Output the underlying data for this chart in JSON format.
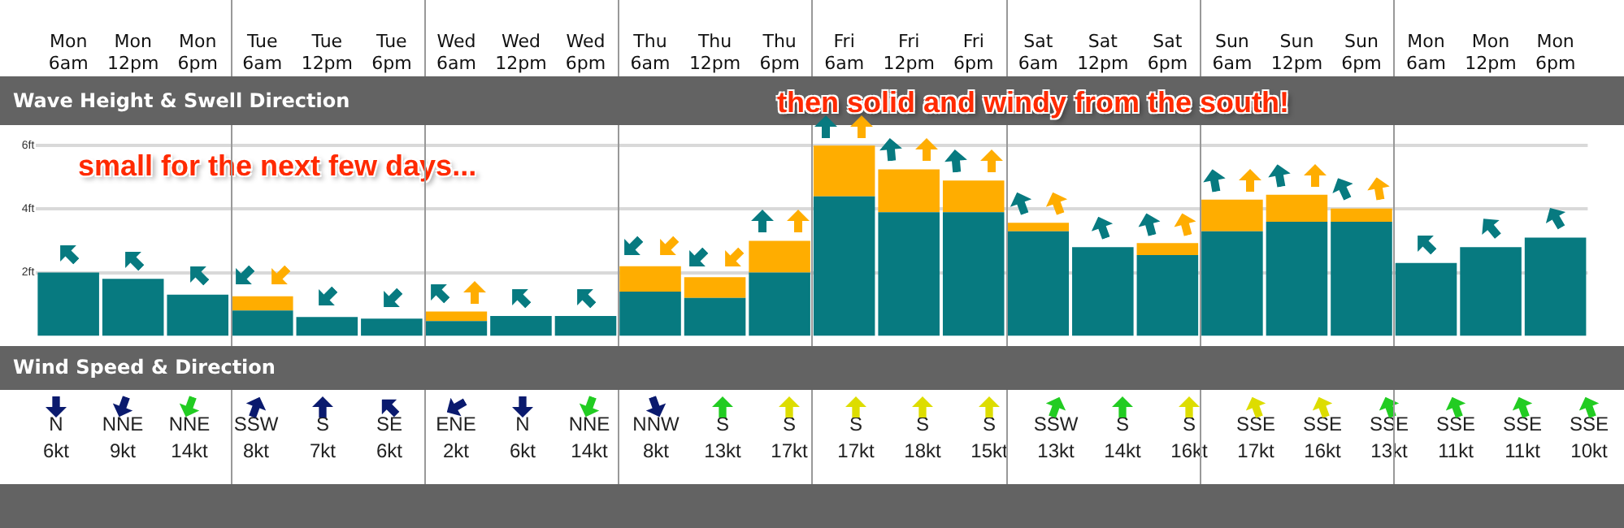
{
  "chart_data": [
    {
      "type": "bar",
      "title": "Wave Height & Swell Direction",
      "stacked": true,
      "grid": "y",
      "categories": [
        "Mon 6am",
        "Mon 12pm",
        "Mon 6pm",
        "Tue 6am",
        "Tue 12pm",
        "Tue 6pm",
        "Wed 6am",
        "Wed 12pm",
        "Wed 6pm",
        "Thu 6am",
        "Thu 12pm",
        "Thu 6pm",
        "Fri 6am",
        "Fri 12pm",
        "Fri 6pm",
        "Sat 6am",
        "Sat 12pm",
        "Sat 6pm",
        "Sun 6am",
        "Sun 12pm",
        "Sun 6pm",
        "Mon 6am",
        "Mon 12pm",
        "Mon 6pm"
      ],
      "series": [
        {
          "color": "#077a80",
          "values": [
            2.0,
            1.8,
            1.3,
            0.8,
            0.6,
            0.55,
            0.47,
            0.63,
            0.63,
            1.4,
            1.2,
            2.0,
            4.4,
            3.9,
            3.9,
            3.3,
            2.8,
            2.55,
            3.3,
            3.6,
            3.6,
            2.3,
            2.8,
            3.1
          ]
        },
        {
          "color": "#ffad00",
          "values": [
            null,
            null,
            null,
            0.45,
            null,
            null,
            0.3,
            null,
            null,
            0.8,
            0.65,
            1.0,
            1.6,
            1.35,
            1.0,
            0.27,
            null,
            0.38,
            1.0,
            0.85,
            0.42,
            null,
            null,
            null
          ]
        }
      ],
      "ylim": [
        0,
        6.7
      ],
      "yticks": [
        {
          "value": 2,
          "label": "2ft"
        },
        {
          "value": 4,
          "label": "4ft"
        },
        {
          "value": 6,
          "label": "6ft"
        }
      ],
      "annotations": [
        "small for the next few days...",
        "then solid and windy from the south!"
      ]
    },
    {
      "type": "other",
      "title": "Wind Speed & Direction",
      "categories": [
        "N",
        "NNE",
        "NNE",
        "SSW",
        "S",
        "SE",
        "ENE",
        "N",
        "NNE",
        "NNW",
        "S",
        "S",
        "S",
        "S",
        "S",
        "SSW",
        "S",
        "S",
        "SSE",
        "SSE",
        "SSE",
        "SSE",
        "SSE",
        "SSE"
      ],
      "values": [
        6,
        9,
        14,
        8,
        7,
        6,
        2,
        6,
        14,
        8,
        13,
        17,
        17,
        18,
        15,
        13,
        14,
        16,
        17,
        16,
        13,
        11,
        11,
        10
      ],
      "value_labels": [
        "6kt",
        "9kt",
        "14kt",
        "8kt",
        "7kt",
        "6kt",
        "2kt",
        "6kt",
        "14kt",
        "8kt",
        "13kt",
        "17kt",
        "17kt",
        "18kt",
        "15kt",
        "13kt",
        "14kt",
        "16kt",
        "17kt",
        "16kt",
        "13kt",
        "11kt",
        "11kt",
        "10kt"
      ]
    }
  ]
}
